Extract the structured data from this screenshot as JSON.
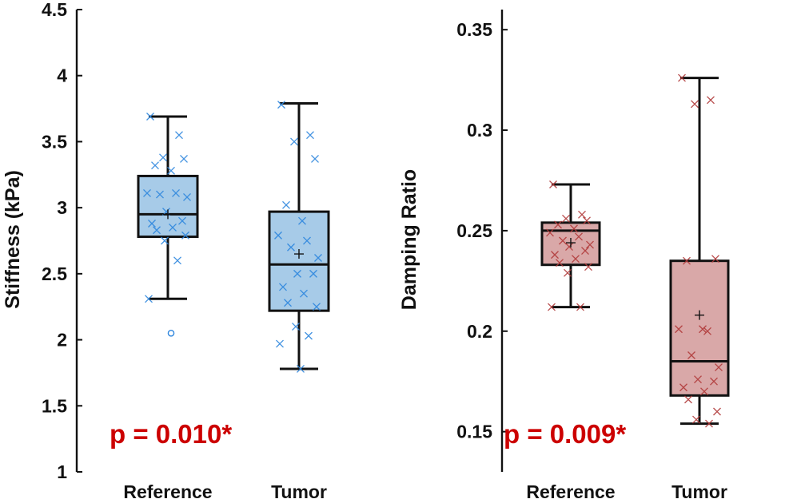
{
  "chart_data": [
    {
      "type": "box",
      "ylabel": "Stiffness (kPa)",
      "xlabel": "",
      "ylim": [
        1,
        4.5
      ],
      "yticks": [
        "1",
        "1.5",
        "2",
        "2.5",
        "3",
        "3.5",
        "4",
        "4.5"
      ],
      "ytick_values": [
        1,
        1.5,
        2,
        2.5,
        3,
        3.5,
        4,
        4.5
      ],
      "categories": [
        "Reference",
        "Tumor"
      ],
      "annotation": "p = 0.010*",
      "colors": {
        "box_fill": "#a7cbe8",
        "points": "#2e86de",
        "outline": "#111111",
        "annotation": "#cc0000"
      },
      "groups": [
        {
          "name": "Reference",
          "whisker_low": 2.31,
          "q1": 2.78,
          "median": 2.95,
          "q3": 3.24,
          "whisker_high": 3.69,
          "mean": 2.95,
          "outliers": [
            2.05
          ],
          "points": [
            3.69,
            3.55,
            3.38,
            3.37,
            3.32,
            3.28,
            3.11,
            3.11,
            3.1,
            3.08,
            2.97,
            2.9,
            2.88,
            2.85,
            2.83,
            2.79,
            2.75,
            2.6,
            2.31
          ]
        },
        {
          "name": "Tumor",
          "whisker_low": 1.78,
          "q1": 2.22,
          "median": 2.57,
          "q3": 2.97,
          "whisker_high": 3.79,
          "mean": 2.65,
          "outliers": [],
          "points": [
            3.78,
            3.55,
            3.5,
            3.37,
            3.02,
            2.9,
            2.79,
            2.75,
            2.7,
            2.62,
            2.5,
            2.5,
            2.4,
            2.35,
            2.28,
            2.25,
            2.1,
            2.03,
            1.97,
            1.78
          ]
        }
      ]
    },
    {
      "type": "box",
      "ylabel": "Damping Ratio",
      "xlabel": "",
      "ylim": [
        0.13,
        0.36
      ],
      "yticks": [
        "0.15",
        "0.2",
        "0.25",
        "0.3",
        "0.35"
      ],
      "ytick_values": [
        0.15,
        0.2,
        0.25,
        0.3,
        0.35
      ],
      "categories": [
        "Reference",
        "Tumor"
      ],
      "annotation": "p = 0.009*",
      "colors": {
        "box_fill": "#d9a8a8",
        "points": "#b03a3a",
        "outline": "#111111",
        "annotation": "#cc0000"
      },
      "groups": [
        {
          "name": "Reference",
          "whisker_low": 0.212,
          "q1": 0.233,
          "median": 0.25,
          "q3": 0.254,
          "whisker_high": 0.273,
          "mean": 0.244,
          "outliers": [],
          "points": [
            0.273,
            0.258,
            0.256,
            0.255,
            0.253,
            0.251,
            0.249,
            0.247,
            0.245,
            0.243,
            0.242,
            0.24,
            0.238,
            0.236,
            0.234,
            0.232,
            0.229,
            0.212,
            0.212
          ]
        },
        {
          "name": "Tumor",
          "whisker_low": 0.154,
          "q1": 0.168,
          "median": 0.185,
          "q3": 0.235,
          "whisker_high": 0.326,
          "mean": 0.208,
          "outliers": [],
          "points": [
            0.326,
            0.315,
            0.313,
            0.236,
            0.235,
            0.201,
            0.201,
            0.2,
            0.188,
            0.182,
            0.176,
            0.175,
            0.172,
            0.17,
            0.166,
            0.16,
            0.156,
            0.154
          ]
        }
      ]
    }
  ]
}
